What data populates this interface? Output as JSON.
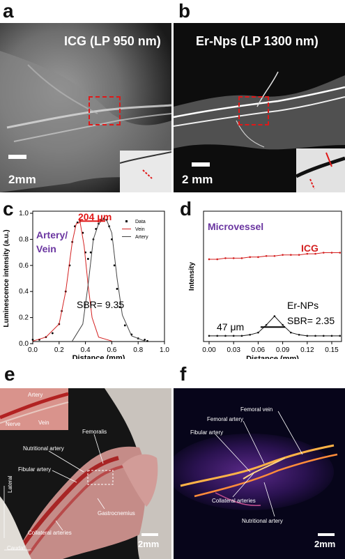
{
  "panels": {
    "a": {
      "letter": "a",
      "label": "ICG (LP 950 nm)",
      "scale": "2mm"
    },
    "b": {
      "letter": "b",
      "label": "Er-Nps (LP 1300 nm)",
      "scale": "2 mm"
    },
    "c": {
      "letter": "c"
    },
    "d": {
      "letter": "d"
    },
    "e": {
      "letter": "e",
      "scale": "2mm",
      "annotations": {
        "artery": "Artery",
        "nerve": "Nerve",
        "vein": "Vein",
        "femoralis": "Femoralis",
        "nutritional": "Nutritional artery",
        "fibular": "Fibular artery",
        "gastrocnemius": "Gastrocnemius",
        "collateral": "Collateral arteries",
        "lateral": "Lateral",
        "caudal": "Caudal"
      }
    },
    "f": {
      "letter": "f",
      "scale": "2mm",
      "annotations": {
        "femoral_vein": "Femoral vein",
        "femoral_artery": "Femoral artery",
        "fibular": "Fibular artery",
        "collateral": "Collateral arteries",
        "nutritional": "Nutritional artery"
      }
    }
  },
  "chart_data": [
    {
      "type": "line",
      "panel": "c",
      "xlabel": "Distance (mm)",
      "ylabel": "Luminescence intensity (a.u.)",
      "xlim": [
        0.0,
        1.0
      ],
      "ylim": [
        0.0,
        1.0
      ],
      "xticks": [
        "0.0",
        "0.2",
        "0.4",
        "0.6",
        "0.8",
        "1.0"
      ],
      "yticks": [
        "0.0",
        "0.2",
        "0.4",
        "0.6",
        "0.8",
        "1.0"
      ],
      "legend": [
        "Data",
        "Vein",
        "Artery"
      ],
      "legend_position": "top-right",
      "annotations": {
        "width": "204 μm",
        "label1": "Artery/",
        "label2": "Vein",
        "sbr": "SBR= 9.35"
      },
      "series": [
        {
          "name": "Data",
          "x": [
            0.0,
            0.05,
            0.1,
            0.15,
            0.2,
            0.22,
            0.25,
            0.28,
            0.3,
            0.32,
            0.34,
            0.36,
            0.38,
            0.4,
            0.42,
            0.44,
            0.46,
            0.48,
            0.5,
            0.52,
            0.54,
            0.56,
            0.58,
            0.6,
            0.62,
            0.64,
            0.66,
            0.7,
            0.75,
            0.8,
            0.85,
            0.87
          ],
          "y": [
            0.03,
            0.03,
            0.05,
            0.08,
            0.15,
            0.25,
            0.4,
            0.6,
            0.78,
            0.9,
            0.93,
            0.94,
            0.85,
            0.7,
            0.65,
            0.7,
            0.8,
            0.88,
            0.92,
            0.95,
            0.96,
            0.95,
            0.9,
            0.8,
            0.6,
            0.42,
            0.28,
            0.14,
            0.07,
            0.04,
            0.03,
            0.02
          ]
        },
        {
          "name": "Vein",
          "x": [
            0.0,
            0.1,
            0.2,
            0.25,
            0.3,
            0.33,
            0.36,
            0.39,
            0.42,
            0.45,
            0.5,
            0.6
          ],
          "y": [
            0.02,
            0.05,
            0.15,
            0.4,
            0.78,
            0.92,
            0.93,
            0.75,
            0.45,
            0.2,
            0.05,
            0.02
          ]
        },
        {
          "name": "Artery",
          "x": [
            0.3,
            0.38,
            0.42,
            0.46,
            0.5,
            0.53,
            0.56,
            0.6,
            0.64,
            0.68,
            0.75,
            0.85
          ],
          "y": [
            0.02,
            0.15,
            0.45,
            0.8,
            0.92,
            0.95,
            0.95,
            0.85,
            0.5,
            0.22,
            0.06,
            0.02
          ]
        }
      ]
    },
    {
      "type": "line",
      "panel": "d",
      "xlabel": "Distance (mm)",
      "ylabel": "Intensity",
      "xlim": [
        0.0,
        0.15
      ],
      "xticks": [
        "0.00",
        "0.03",
        "0.06",
        "0.09",
        "0.12",
        "0.15"
      ],
      "annotations": {
        "title": "Microvessel",
        "width": "47 μm",
        "sbr": "SBR= 2.35"
      },
      "series": [
        {
          "name": "ICG",
          "x": [
            0.0,
            0.01,
            0.02,
            0.03,
            0.04,
            0.05,
            0.06,
            0.07,
            0.08,
            0.09,
            0.1,
            0.11,
            0.12,
            0.13,
            0.14,
            0.15,
            0.16
          ],
          "y": [
            0.72,
            0.72,
            0.73,
            0.73,
            0.73,
            0.74,
            0.74,
            0.75,
            0.75,
            0.76,
            0.76,
            0.76,
            0.77,
            0.77,
            0.78,
            0.78,
            0.78
          ]
        },
        {
          "name": "Er-NPs",
          "x": [
            0.0,
            0.01,
            0.02,
            0.03,
            0.04,
            0.05,
            0.06,
            0.07,
            0.08,
            0.09,
            0.1,
            0.11,
            0.12,
            0.13,
            0.14,
            0.15,
            0.16
          ],
          "y": [
            0.02,
            0.02,
            0.02,
            0.02,
            0.02,
            0.03,
            0.05,
            0.12,
            0.2,
            0.12,
            0.05,
            0.03,
            0.02,
            0.02,
            0.02,
            0.02,
            0.02
          ]
        }
      ]
    }
  ]
}
